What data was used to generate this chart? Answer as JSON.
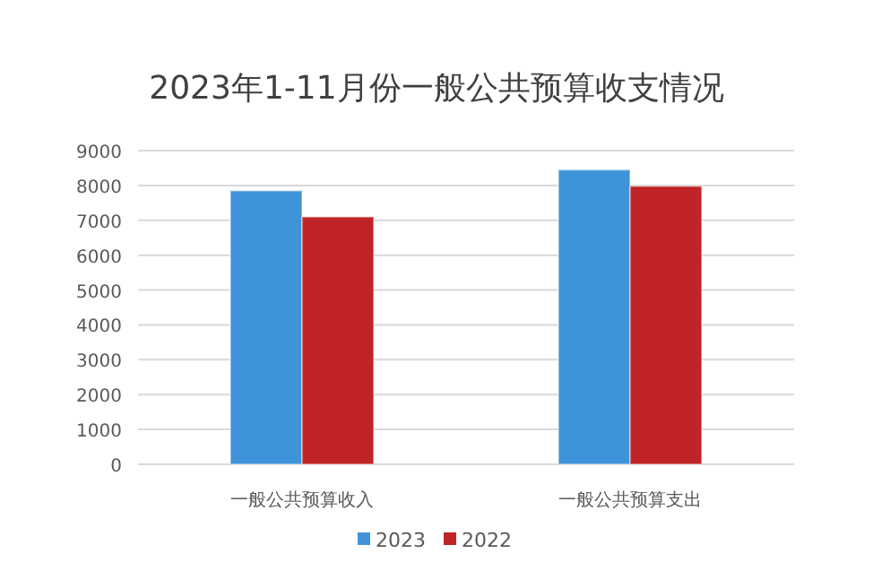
{
  "chart_data": {
    "type": "bar",
    "title": "2023年1-11月份一般公共预算收支情况",
    "categories": [
      "一般公共预算收入",
      "一般公共预算支出"
    ],
    "series": [
      {
        "name": "2023",
        "color": "#3f93d8",
        "values": [
          7850,
          8450
        ]
      },
      {
        "name": "2022",
        "color": "#c02426",
        "values": [
          7100,
          7980
        ]
      }
    ],
    "ylim": [
      0,
      9000
    ],
    "yticks": [
      0,
      1000,
      2000,
      3000,
      4000,
      5000,
      6000,
      7000,
      8000,
      9000
    ],
    "grid": "y",
    "legend": "bottom"
  }
}
